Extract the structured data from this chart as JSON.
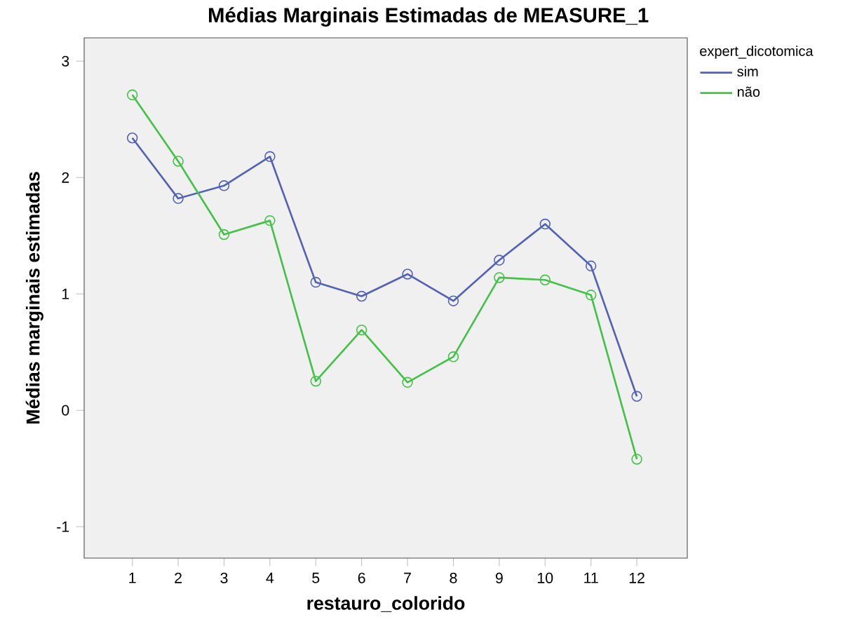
{
  "chart_data": {
    "type": "line",
    "title": "Médias Marginais Estimadas de MEASURE_1",
    "xlabel": "restauro_colorido",
    "ylabel": "Médias marginais estimadas",
    "legend_title": "expert_dicotomica",
    "categories": [
      "1",
      "2",
      "3",
      "4",
      "5",
      "6",
      "7",
      "8",
      "9",
      "10",
      "11",
      "12"
    ],
    "series": [
      {
        "name": "sim",
        "color": "#5462b6",
        "values": [
          2.34,
          1.82,
          1.93,
          2.18,
          1.1,
          0.98,
          1.17,
          0.94,
          1.29,
          1.6,
          1.24,
          0.12
        ]
      },
      {
        "name": "não",
        "color": "#44c248",
        "values": [
          2.71,
          2.14,
          1.51,
          1.63,
          0.25,
          0.69,
          0.24,
          0.46,
          1.14,
          1.12,
          0.99,
          -0.42
        ]
      }
    ],
    "ylim": [
      -1.27,
      3.2
    ],
    "yticks": [
      -1,
      0,
      1,
      2,
      3
    ],
    "grid": false,
    "legend": "top right",
    "marker": "circle",
    "line_style": "solid"
  }
}
